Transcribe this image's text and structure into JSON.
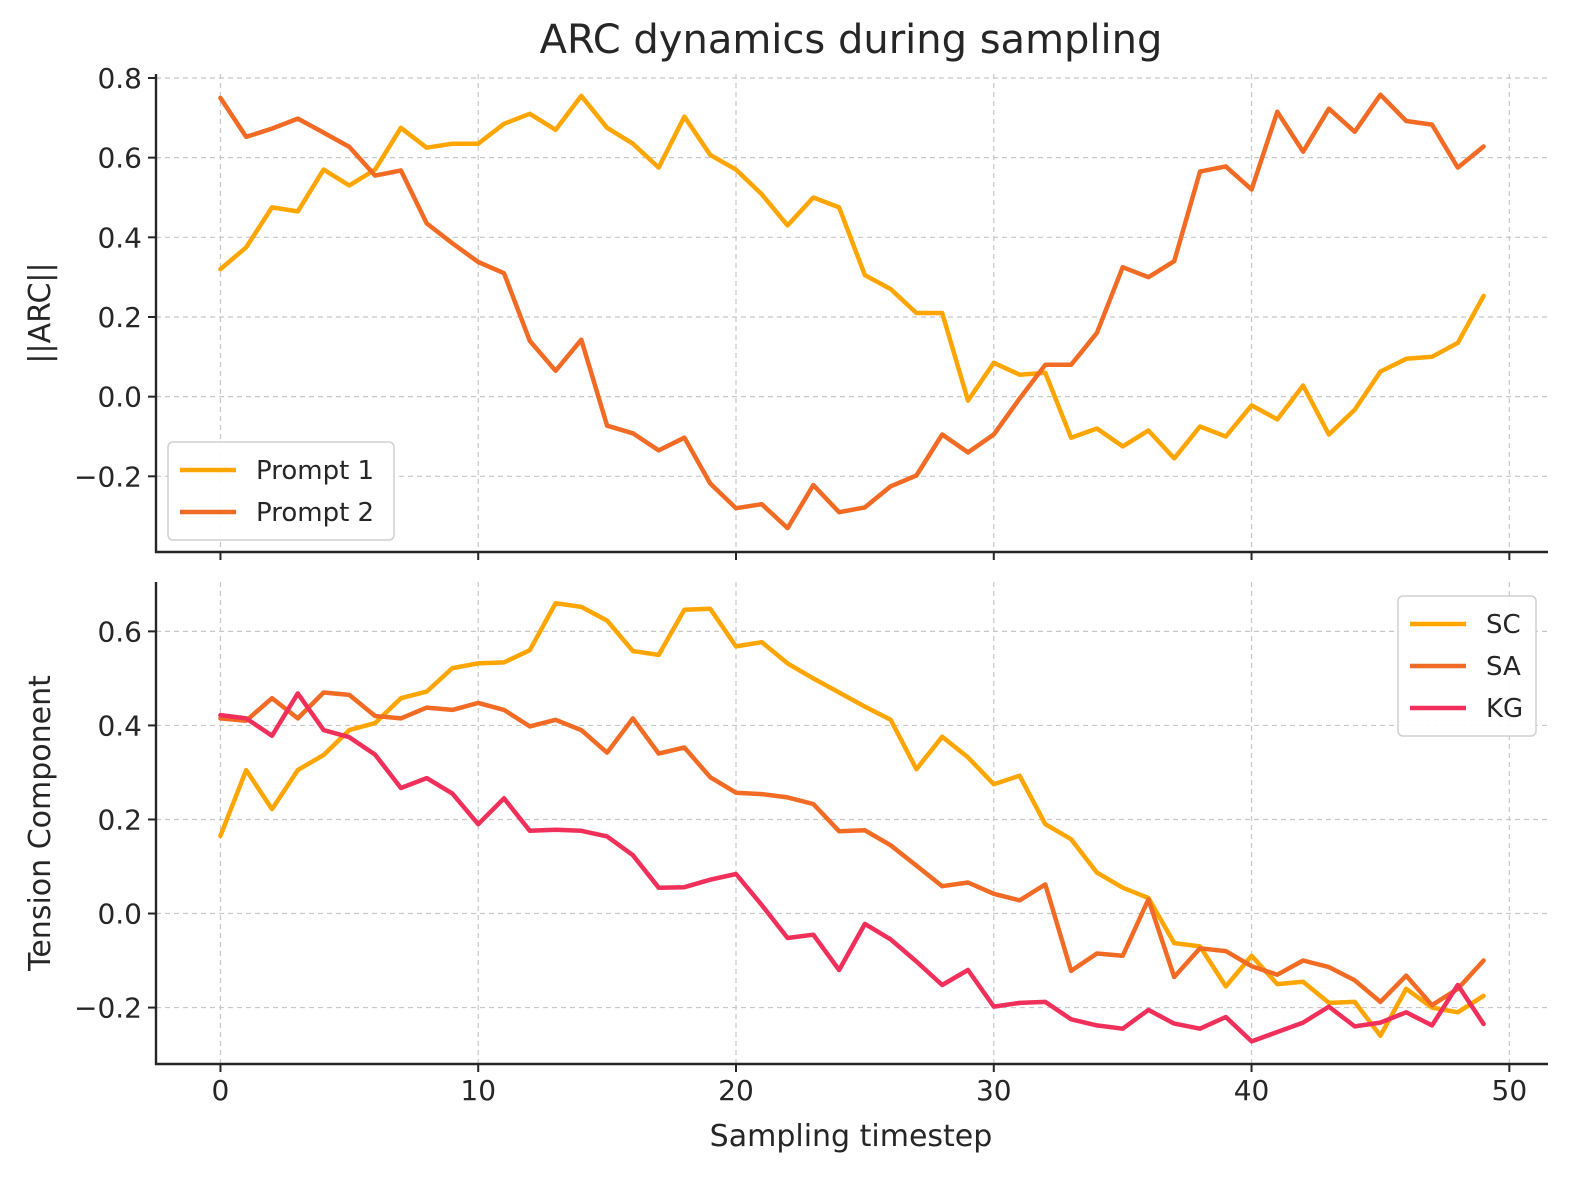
{
  "title": "ARC dynamics during sampling",
  "xlabel": "Sampling timestep",
  "chart_data": [
    {
      "type": "line",
      "id": "top",
      "ylabel": "||ARC||",
      "xlim": [
        -2.5,
        51.5
      ],
      "ylim": [
        -0.39,
        0.81
      ],
      "xticks": [
        0,
        10,
        20,
        30,
        40,
        50
      ],
      "yticks": [
        -0.2,
        0.0,
        0.2,
        0.4,
        0.6,
        0.8
      ],
      "ytick_labels": [
        "−0.2",
        "0.0",
        "0.2",
        "0.4",
        "0.6",
        "0.8"
      ],
      "show_xtick_labels": false,
      "grid": true,
      "legend": "lower-left",
      "series": [
        {
          "name": "Prompt 1",
          "color": "#FFA500",
          "values": [
            0.32,
            0.375,
            0.475,
            0.465,
            0.57,
            0.53,
            0.57,
            0.675,
            0.625,
            0.635,
            0.635,
            0.685,
            0.71,
            0.67,
            0.755,
            0.675,
            0.635,
            0.575,
            0.703,
            0.607,
            0.57,
            0.508,
            0.43,
            0.5,
            0.475,
            0.305,
            0.27,
            0.21,
            0.21,
            -0.01,
            0.085,
            0.055,
            0.06,
            -0.103,
            -0.08,
            -0.125,
            -0.085,
            -0.155,
            -0.075,
            -0.1,
            -0.022,
            -0.057,
            0.028,
            -0.095,
            -0.033,
            0.063,
            0.095,
            0.1,
            0.135,
            0.253
          ]
        },
        {
          "name": "Prompt 2",
          "color": "#F26B24",
          "values": [
            0.75,
            0.652,
            0.673,
            0.698,
            0.663,
            0.627,
            0.555,
            0.568,
            0.435,
            0.385,
            0.338,
            0.31,
            0.14,
            0.065,
            0.143,
            -0.073,
            -0.092,
            -0.135,
            -0.103,
            -0.218,
            -0.28,
            -0.27,
            -0.33,
            -0.222,
            -0.29,
            -0.278,
            -0.225,
            -0.198,
            -0.095,
            -0.14,
            -0.095,
            -0.005,
            0.08,
            0.08,
            0.16,
            0.325,
            0.3,
            0.34,
            0.565,
            0.578,
            0.52,
            0.715,
            0.615,
            0.723,
            0.665,
            0.758,
            0.692,
            0.683,
            0.575,
            0.628
          ]
        }
      ]
    },
    {
      "type": "line",
      "id": "bottom",
      "ylabel": "Tension Component",
      "xlim": [
        -2.5,
        51.5
      ],
      "ylim": [
        -0.32,
        0.705
      ],
      "xticks": [
        0,
        10,
        20,
        30,
        40,
        50
      ],
      "xtick_labels": [
        "0",
        "10",
        "20",
        "30",
        "40",
        "50"
      ],
      "yticks": [
        -0.2,
        0.0,
        0.2,
        0.4,
        0.6
      ],
      "ytick_labels": [
        "−0.2",
        "0.0",
        "0.2",
        "0.4",
        "0.6"
      ],
      "show_xtick_labels": true,
      "grid": true,
      "legend": "upper-right",
      "series": [
        {
          "name": "SC",
          "color": "#FFA500",
          "values": [
            0.165,
            0.305,
            0.222,
            0.305,
            0.337,
            0.39,
            0.405,
            0.458,
            0.472,
            0.522,
            0.532,
            0.534,
            0.56,
            0.66,
            0.652,
            0.623,
            0.558,
            0.55,
            0.646,
            0.648,
            0.568,
            0.577,
            0.532,
            0.5,
            0.47,
            0.44,
            0.412,
            0.307,
            0.376,
            0.332,
            0.275,
            0.293,
            0.19,
            0.158,
            0.087,
            0.055,
            0.033,
            -0.063,
            -0.07,
            -0.155,
            -0.09,
            -0.15,
            -0.145,
            -0.19,
            -0.188,
            -0.26,
            -0.16,
            -0.2,
            -0.21,
            -0.175
          ]
        },
        {
          "name": "SA",
          "color": "#F26B24",
          "values": [
            0.415,
            0.41,
            0.458,
            0.415,
            0.47,
            0.465,
            0.42,
            0.415,
            0.438,
            0.433,
            0.448,
            0.433,
            0.398,
            0.412,
            0.39,
            0.342,
            0.415,
            0.34,
            0.353,
            0.29,
            0.257,
            0.254,
            0.247,
            0.233,
            0.175,
            0.177,
            0.145,
            0.102,
            0.058,
            0.066,
            0.042,
            0.028,
            0.062,
            -0.122,
            -0.085,
            -0.09,
            0.03,
            -0.135,
            -0.074,
            -0.08,
            -0.112,
            -0.13,
            -0.1,
            -0.114,
            -0.142,
            -0.188,
            -0.132,
            -0.195,
            -0.16,
            -0.1
          ]
        },
        {
          "name": "KG",
          "color": "#F0305A",
          "values": [
            0.422,
            0.415,
            0.378,
            0.468,
            0.39,
            0.375,
            0.338,
            0.267,
            0.288,
            0.255,
            0.19,
            0.245,
            0.176,
            0.178,
            0.176,
            0.164,
            0.124,
            0.055,
            0.056,
            0.072,
            0.084,
            0.018,
            -0.052,
            -0.045,
            -0.12,
            -0.022,
            -0.055,
            -0.102,
            -0.152,
            -0.12,
            -0.198,
            -0.19,
            -0.188,
            -0.225,
            -0.238,
            -0.245,
            -0.205,
            -0.234,
            -0.245,
            -0.22,
            -0.272,
            -0.252,
            -0.232,
            -0.198,
            -0.24,
            -0.232,
            -0.21,
            -0.238,
            -0.152,
            -0.235
          ]
        }
      ]
    }
  ]
}
